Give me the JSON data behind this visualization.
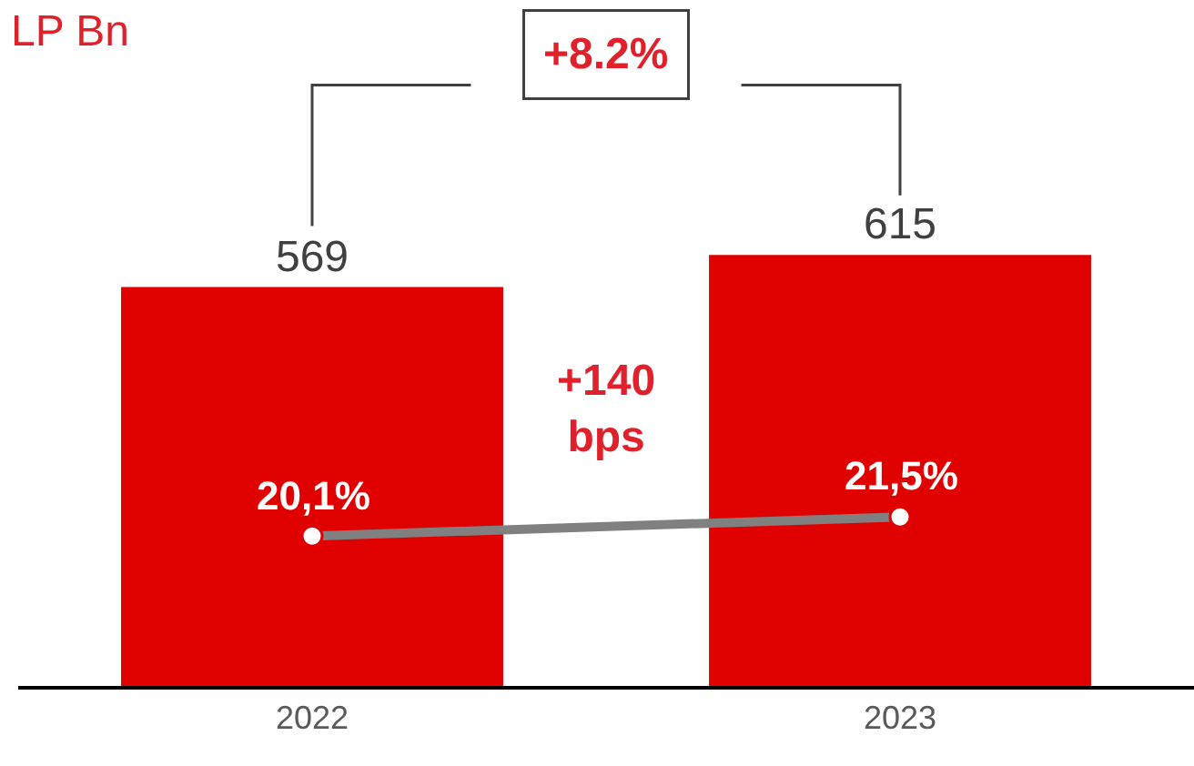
{
  "chart_data": {
    "type": "bar",
    "title": "LP Bn",
    "categories": [
      "2022",
      "2023"
    ],
    "series": [
      {
        "color": "#e00000",
        "values": [
          569,
          615
        ]
      },
      {
        "type": "line",
        "axis": "y2",
        "color": "#808080",
        "values": [
          20.1,
          21.5
        ],
        "value_labels": [
          "20,1%",
          "21,5%"
        ]
      }
    ],
    "data_labels": true,
    "marker": "circle",
    "grid": false,
    "legend": false,
    "tick_labels": "x",
    "annotations": [
      "+8.2%",
      "+140\nbps"
    ]
  }
}
